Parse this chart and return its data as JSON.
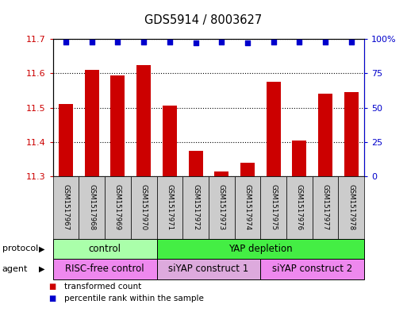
{
  "title": "GDS5914 / 8003627",
  "samples": [
    "GSM1517967",
    "GSM1517968",
    "GSM1517969",
    "GSM1517970",
    "GSM1517971",
    "GSM1517972",
    "GSM1517973",
    "GSM1517974",
    "GSM1517975",
    "GSM1517976",
    "GSM1517977",
    "GSM1517978"
  ],
  "bar_values": [
    11.51,
    11.61,
    11.595,
    11.625,
    11.505,
    11.375,
    11.315,
    11.34,
    11.575,
    11.405,
    11.54,
    11.545
  ],
  "percentile_values": [
    98,
    98,
    98,
    98,
    98,
    97,
    98,
    97,
    98,
    98,
    98,
    98
  ],
  "bar_color": "#cc0000",
  "percentile_color": "#0000cc",
  "ylim_left": [
    11.3,
    11.7
  ],
  "ylim_right": [
    0,
    100
  ],
  "yticks_left": [
    11.3,
    11.4,
    11.5,
    11.6,
    11.7
  ],
  "yticks_right": [
    0,
    25,
    50,
    75,
    100
  ],
  "ytick_labels_right": [
    "0",
    "25",
    "50",
    "75",
    "100%"
  ],
  "protocol_groups": [
    {
      "label": "control",
      "start": 0,
      "end": 4,
      "color": "#aaffaa"
    },
    {
      "label": "YAP depletion",
      "start": 4,
      "end": 12,
      "color": "#44ee44"
    }
  ],
  "agent_groups": [
    {
      "label": "RISC-free control",
      "start": 0,
      "end": 4,
      "color": "#ee88ee"
    },
    {
      "label": "siYAP construct 1",
      "start": 4,
      "end": 8,
      "color": "#ddaadd"
    },
    {
      "label": "siYAP construct 2",
      "start": 8,
      "end": 12,
      "color": "#ee88ee"
    }
  ],
  "protocol_label": "protocol",
  "agent_label": "agent",
  "legend_items": [
    {
      "label": "transformed count",
      "color": "#cc0000"
    },
    {
      "label": "percentile rank within the sample",
      "color": "#0000cc"
    }
  ],
  "background_color": "#ffffff",
  "bar_width": 0.55,
  "sample_box_color": "#cccccc"
}
